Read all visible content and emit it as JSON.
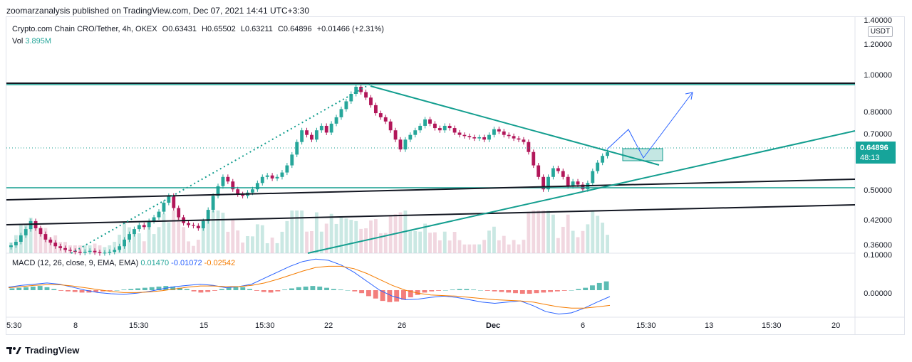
{
  "header": {
    "published": "zoomarzanalysis published on TradingView.com, Dec 07, 2021 14:41 UTC+3:30"
  },
  "legend": {
    "symbol": "Crypto.com Chain CRO/Tether, 4h, OKEX",
    "o": "O0.63431",
    "h": "H0.65502",
    "l": "L0.63211",
    "c": "C0.64896",
    "change": "+0.01466 (+2.31%)",
    "vol_label": "Vol",
    "vol_value": "3.895M"
  },
  "macd_legend": {
    "label": "MACD (12, 26, close, 9, EMA, EMA)",
    "hist": "0.01470",
    "macd": "-0.01072",
    "signal": "-0.02542"
  },
  "price_axis": {
    "currency": "USDT",
    "labels": [
      "1.40000",
      "1.20000",
      "1.00000",
      "0.80000",
      "0.70000",
      "0.50000",
      "0.42000",
      "0.36000"
    ],
    "current_price": "0.64896",
    "countdown": "48:13"
  },
  "macd_axis": {
    "labels": [
      "0.10000",
      "0.00000"
    ]
  },
  "time_axis": {
    "labels": [
      "5:30",
      "8",
      "15:30",
      "15",
      "15:30",
      "22",
      "26",
      "Dec",
      "6",
      "15:30",
      "13",
      "15:30",
      "20"
    ]
  },
  "footer": {
    "brand": "TradingView"
  },
  "colors": {
    "up": "#26a69a",
    "down": "#b2175a",
    "teal_line": "#139e8f",
    "macd": "#2962ff",
    "signal": "#f57c00",
    "arrow": "#2962ff"
  },
  "chart_data": {
    "type": "candlestick",
    "title": "Crypto.com Chain CRO/Tether, 4h, OKEX",
    "ylim": [
      0.355,
      1.45
    ],
    "y_scale": "log",
    "last_close": 0.64896,
    "closes": [
      0.372,
      0.38,
      0.395,
      0.41,
      0.43,
      0.412,
      0.398,
      0.385,
      0.378,
      0.37,
      0.366,
      0.362,
      0.36,
      0.358,
      0.356,
      0.358,
      0.36,
      0.357,
      0.355,
      0.356,
      0.358,
      0.362,
      0.37,
      0.385,
      0.398,
      0.41,
      0.42,
      0.415,
      0.43,
      0.44,
      0.455,
      0.48,
      0.5,
      0.465,
      0.44,
      0.425,
      0.42,
      0.418,
      0.412,
      0.43,
      0.46,
      0.5,
      0.53,
      0.56,
      0.545,
      0.52,
      0.505,
      0.5,
      0.51,
      0.52,
      0.54,
      0.56,
      0.565,
      0.555,
      0.56,
      0.575,
      0.6,
      0.64,
      0.69,
      0.74,
      0.72,
      0.7,
      0.74,
      0.76,
      0.73,
      0.77,
      0.8,
      0.84,
      0.88,
      0.92,
      0.96,
      0.93,
      0.9,
      0.86,
      0.82,
      0.8,
      0.78,
      0.74,
      0.7,
      0.66,
      0.7,
      0.72,
      0.74,
      0.76,
      0.79,
      0.77,
      0.75,
      0.74,
      0.76,
      0.75,
      0.73,
      0.72,
      0.715,
      0.71,
      0.705,
      0.71,
      0.7,
      0.72,
      0.745,
      0.735,
      0.72,
      0.715,
      0.705,
      0.7,
      0.69,
      0.65,
      0.6,
      0.56,
      0.52,
      0.56,
      0.59,
      0.58,
      0.56,
      0.53,
      0.545,
      0.535,
      0.52,
      0.54,
      0.58,
      0.61,
      0.635,
      0.649
    ],
    "macd_hist": [
      0.003,
      0.004,
      0.005,
      0.006,
      0.007,
      0.005,
      0.002,
      -0.001,
      -0.002,
      -0.003,
      -0.004,
      -0.004,
      -0.003,
      -0.002,
      -0.001,
      0.0,
      0.001,
      0.002,
      0.003,
      0.004,
      0.005,
      0.006,
      0.007,
      0.006,
      0.004,
      0.002,
      -0.002,
      -0.004,
      -0.003,
      -0.001,
      0.002,
      0.004,
      0.006,
      0.005,
      0.002,
      -0.001,
      -0.003,
      -0.004,
      -0.002,
      0.001,
      0.003,
      0.005,
      0.006,
      0.007,
      0.006,
      0.004,
      0.002,
      0.001,
      0.0,
      -0.002,
      -0.005,
      -0.01,
      -0.014,
      -0.018,
      -0.02,
      -0.019,
      -0.016,
      -0.012,
      -0.008,
      -0.004,
      -0.002,
      -0.001,
      0.0,
      0.001,
      0.002,
      0.002,
      0.001,
      0.0,
      -0.001,
      -0.002,
      -0.003,
      -0.004,
      -0.005,
      -0.006,
      -0.006,
      -0.005,
      -0.004,
      -0.003,
      -0.002,
      -0.001,
      0.0,
      0.002,
      0.004,
      0.008,
      0.012,
      0.0147
    ],
    "macd_line": [
      0.005,
      0.008,
      0.01,
      0.012,
      0.01,
      0.005,
      0.0,
      -0.004,
      -0.006,
      -0.007,
      -0.005,
      -0.002,
      0.002,
      0.006,
      0.008,
      0.01,
      0.008,
      0.004,
      0.006,
      0.01,
      0.02,
      0.03,
      0.04,
      0.048,
      0.052,
      0.05,
      0.042,
      0.03,
      0.015,
      0.0,
      -0.01,
      -0.016,
      -0.015,
      -0.012,
      -0.01,
      -0.012,
      -0.016,
      -0.02,
      -0.022,
      -0.02,
      -0.018,
      -0.026,
      -0.036,
      -0.04,
      -0.038,
      -0.03,
      -0.02,
      -0.01072
    ],
    "signal_line": [
      0.004,
      0.006,
      0.008,
      0.009,
      0.009,
      0.007,
      0.004,
      0.001,
      -0.002,
      -0.004,
      -0.004,
      -0.003,
      -0.001,
      0.002,
      0.005,
      0.007,
      0.007,
      0.006,
      0.006,
      0.008,
      0.012,
      0.018,
      0.025,
      0.032,
      0.038,
      0.04,
      0.04,
      0.036,
      0.028,
      0.018,
      0.008,
      0.0,
      -0.005,
      -0.008,
      -0.009,
      -0.01,
      -0.012,
      -0.014,
      -0.016,
      -0.017,
      -0.018,
      -0.02,
      -0.024,
      -0.028,
      -0.03,
      -0.03,
      -0.028,
      -0.02542
    ]
  }
}
